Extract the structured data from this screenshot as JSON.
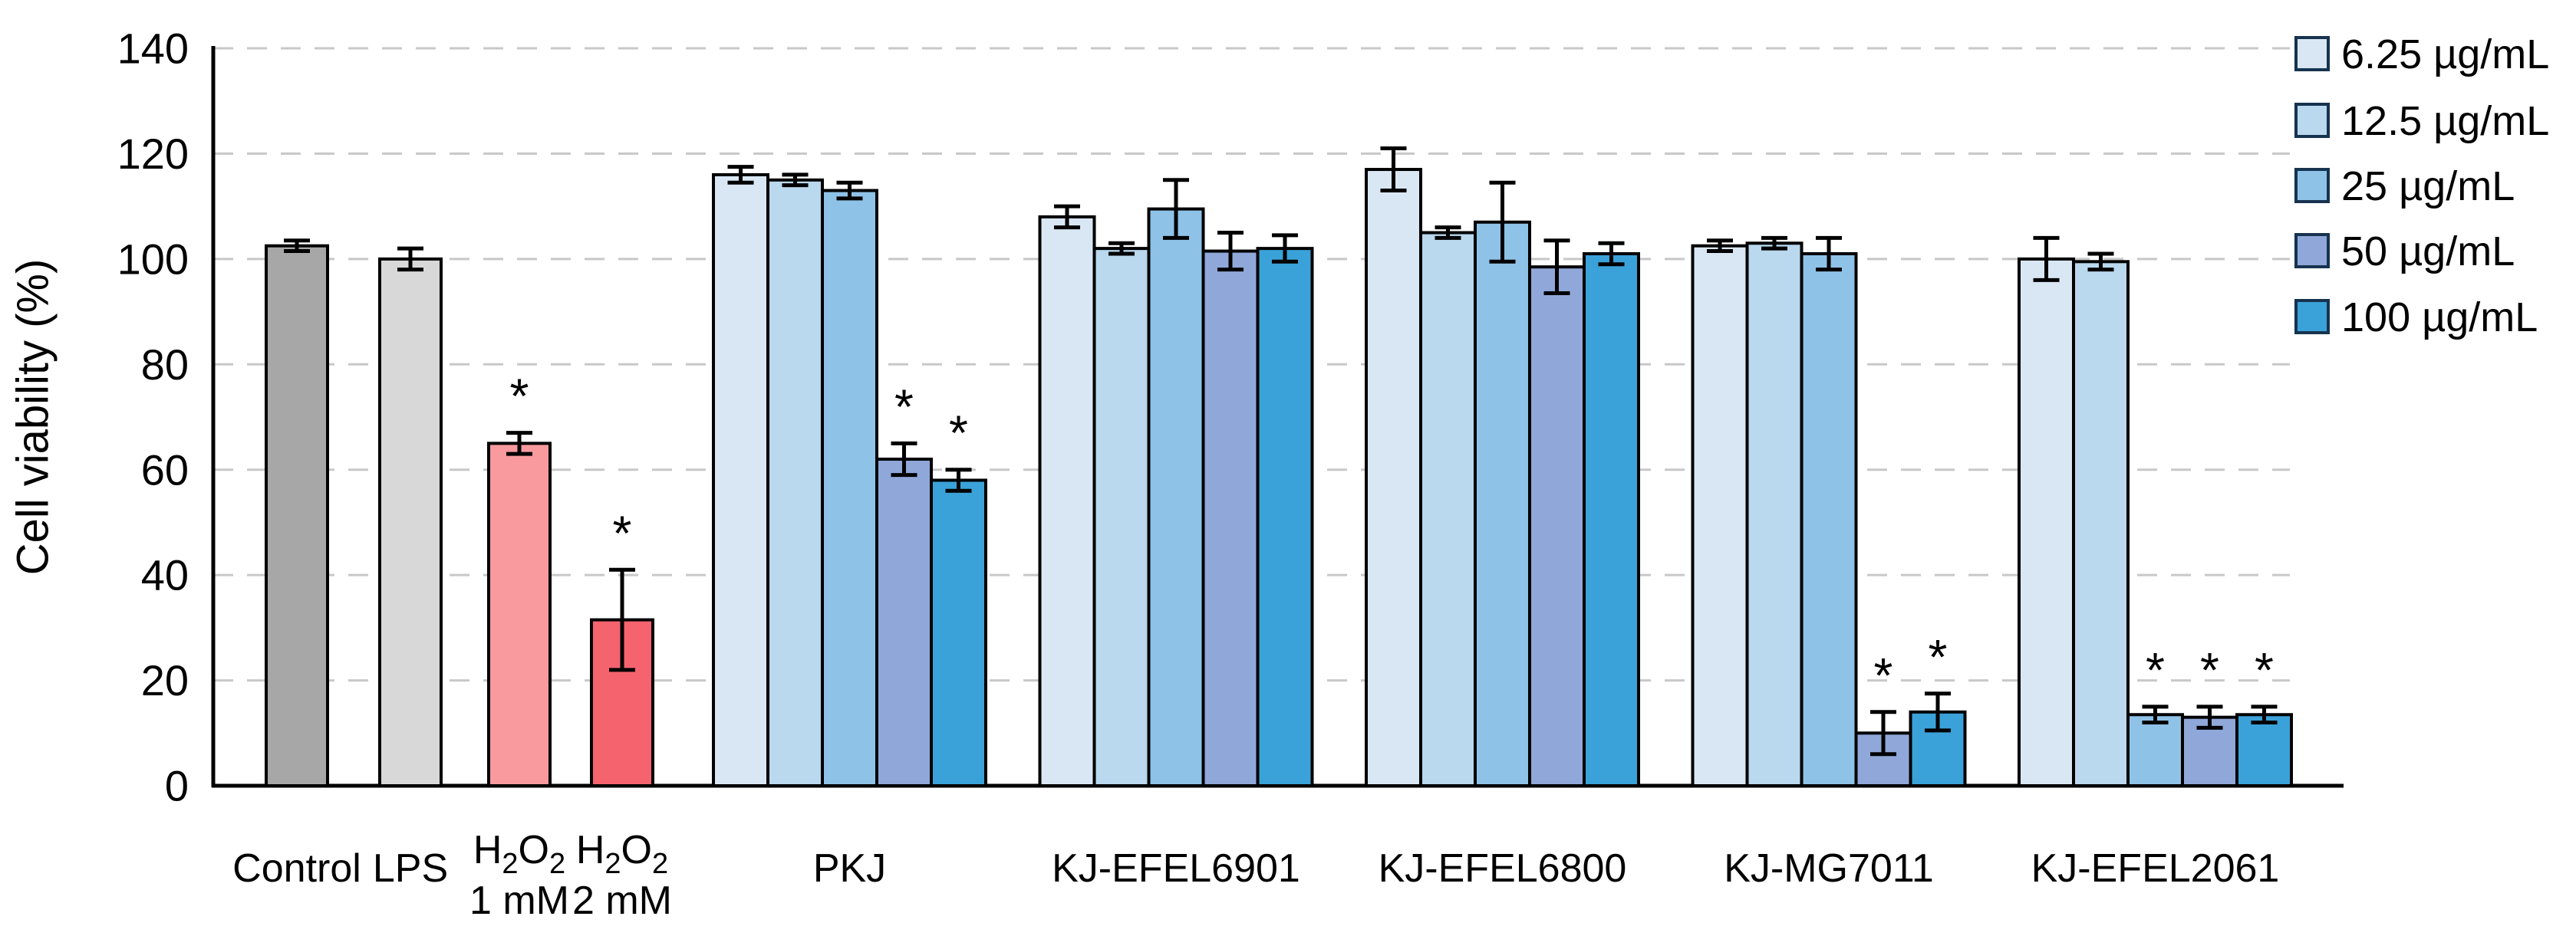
{
  "chart_data": {
    "type": "bar",
    "title": "",
    "ylabel": "Cell viability (%)",
    "ylim": [
      0,
      140
    ],
    "yticks": [
      0,
      20,
      40,
      60,
      80,
      100,
      120,
      140
    ],
    "grid": "horizontal-dashed",
    "grid_color": "#c8c8c8",
    "axis_color": "#000000",
    "significance_marker": "*",
    "legend": {
      "position": "top-right",
      "swatch_border_color": "#17334f",
      "entries": [
        {
          "label": "6.25 µg/mL",
          "color": "#d9e7f5"
        },
        {
          "label": "12.5 µg/mL",
          "color": "#bad8ee"
        },
        {
          "label": "25 µg/mL",
          "color": "#8fc2e7"
        },
        {
          "label": "50 µg/mL",
          "color": "#90a8d9"
        },
        {
          "label": "100 µg/mL",
          "color": "#3aa2d9"
        }
      ]
    },
    "single_bars": [
      {
        "label": "Control",
        "label_segments": [
          [
            "Control",
            false
          ]
        ],
        "line2": null,
        "value": 102.5,
        "error": 1,
        "color": "#a7a7a7",
        "significant": false
      },
      {
        "label": "LPS",
        "label_segments": [
          [
            "LPS",
            false
          ]
        ],
        "line2": null,
        "value": 100,
        "error": 2,
        "color": "#d8d8d8",
        "significant": false
      },
      {
        "label": "H2O2 1 mM",
        "label_segments": [
          [
            "H",
            false
          ],
          [
            "2",
            true
          ],
          [
            "O",
            false
          ],
          [
            "2",
            true
          ]
        ],
        "line2": "1 mM",
        "value": 65,
        "error": 2,
        "color": "#f89a9e",
        "significant": true
      },
      {
        "label": "H2O2 2 mM",
        "label_segments": [
          [
            "H",
            false
          ],
          [
            "2",
            true
          ],
          [
            "O",
            false
          ],
          [
            "2",
            true
          ]
        ],
        "line2": "2 mM",
        "value": 31.5,
        "error": 9.5,
        "color": "#f5636e",
        "significant": true
      }
    ],
    "groups": [
      {
        "label": "PKJ",
        "values": [
          116,
          115,
          113,
          62,
          58
        ],
        "errors": [
          1.5,
          1,
          1.5,
          3,
          2
        ],
        "significant": [
          false,
          false,
          false,
          true,
          true
        ]
      },
      {
        "label": "KJ-EFEL6901",
        "values": [
          108,
          102,
          109.5,
          101.5,
          102
        ],
        "errors": [
          2,
          1,
          5.5,
          3.5,
          2.5
        ],
        "significant": [
          false,
          false,
          false,
          false,
          false
        ]
      },
      {
        "label": "KJ-EFEL6800",
        "values": [
          117,
          105,
          107,
          98.5,
          101
        ],
        "errors": [
          4,
          1,
          7.5,
          5,
          2
        ],
        "significant": [
          false,
          false,
          false,
          false,
          false
        ]
      },
      {
        "label": "KJ-MG7011",
        "values": [
          102.5,
          103,
          101,
          10,
          14
        ],
        "errors": [
          1,
          1,
          3,
          4,
          3.5
        ],
        "significant": [
          false,
          false,
          false,
          true,
          true
        ]
      },
      {
        "label": "KJ-EFEL2061",
        "values": [
          100,
          99.5,
          13.5,
          13,
          13.5
        ],
        "errors": [
          4,
          1.5,
          1.5,
          2,
          1.5
        ],
        "significant": [
          false,
          false,
          true,
          true,
          true
        ]
      }
    ]
  }
}
